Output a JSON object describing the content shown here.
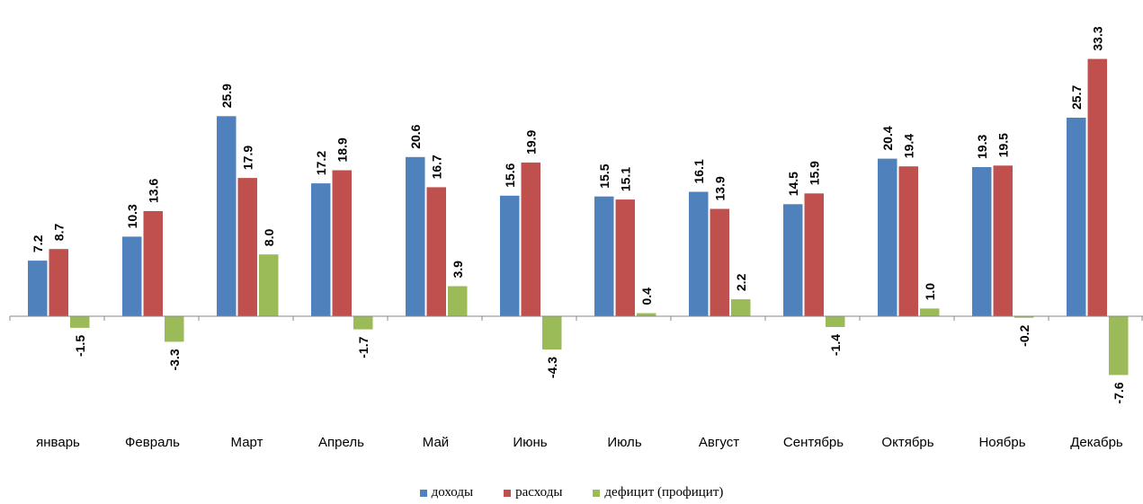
{
  "chart_data": {
    "type": "bar",
    "categories": [
      "январь",
      "Февраль",
      "Март",
      "Апрель",
      "Май",
      "Июнь",
      "Июль",
      "Август",
      "Сентябрь",
      "Октябрь",
      "Ноябрь",
      "Декабрь"
    ],
    "series": [
      {
        "name": "доходы",
        "color": "#4F81BD",
        "values": [
          7.2,
          10.3,
          25.9,
          17.2,
          20.6,
          15.6,
          15.5,
          16.1,
          14.5,
          20.4,
          19.3,
          25.7
        ]
      },
      {
        "name": "расходы",
        "color": "#C0504D",
        "values": [
          8.7,
          13.6,
          17.9,
          18.9,
          16.7,
          19.9,
          15.1,
          13.9,
          15.9,
          19.4,
          19.5,
          33.3
        ]
      },
      {
        "name": "дефицит (профицит)",
        "color": "#9BBB59",
        "values": [
          -1.5,
          -3.3,
          8.0,
          -1.7,
          3.9,
          -4.3,
          0.4,
          2.2,
          -1.4,
          1.0,
          -0.2,
          -7.6
        ]
      }
    ],
    "label_format": "0.0",
    "legend_position": "bottom",
    "grid": false
  }
}
